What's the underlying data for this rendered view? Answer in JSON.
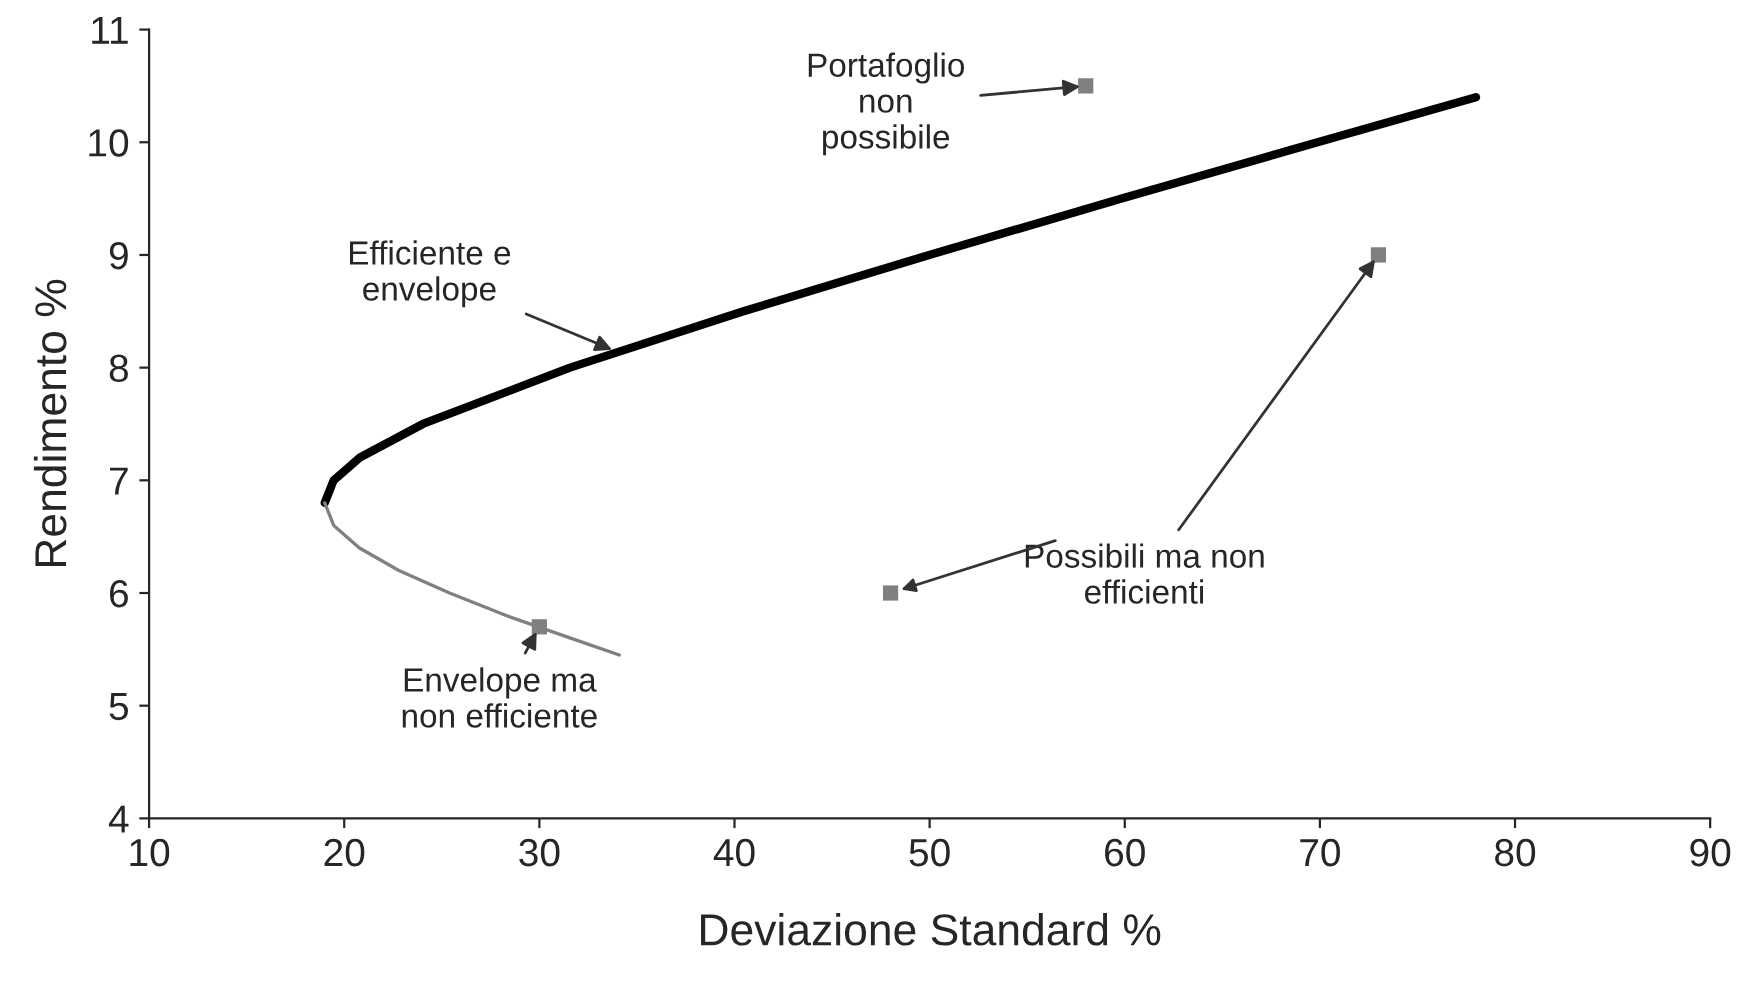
{
  "chart_data": {
    "type": "line",
    "xlabel": "Deviazione Standard %",
    "ylabel": "Rendimento %",
    "xlim": [
      10,
      90
    ],
    "xticks": [
      10,
      20,
      30,
      40,
      50,
      60,
      70,
      80,
      90
    ],
    "ylim": [
      4,
      11
    ],
    "yticks": [
      4,
      5,
      6,
      7,
      8,
      9,
      10,
      11
    ],
    "grid": false,
    "series": [
      {
        "color": "#000000",
        "x": [
          19,
          19.46,
          20.78,
          24.03,
          31.57,
          40.46,
          49.98,
          59.84,
          69.88,
          78
        ],
        "values": [
          6.8,
          7.0,
          7.2,
          7.5,
          8.0,
          8.5,
          9.0,
          9.5,
          10.0,
          10.4
        ],
        "line_style": "solid"
      },
      {
        "color": "#808080",
        "x": [
          19,
          19.46,
          20.78,
          22.8,
          25.4,
          28.3,
          31.6,
          34.1
        ],
        "values": [
          6.8,
          6.6,
          6.4,
          6.2,
          6.0,
          5.8,
          5.6,
          5.45
        ],
        "line_style": "solid"
      },
      {
        "type": "scatter",
        "color": "#808080",
        "marker": "square",
        "x": [
          58,
          73,
          48,
          30
        ],
        "values": [
          10.5,
          9.0,
          6.0,
          5.7
        ]
      }
    ],
    "annotations": [
      {
        "text": "Portafoglio\nnon\npossibile",
        "x": 58,
        "y": 10.5
      },
      {
        "text": "Efficiente e\nenvelope",
        "x": 34,
        "y": 8.14
      },
      {
        "text": "Possibili ma non\nefficienti",
        "x": 73,
        "y": 9.0
      },
      {
        "text": "Envelope ma\nnon efficiente",
        "x": 30,
        "y": 5.7
      }
    ]
  }
}
